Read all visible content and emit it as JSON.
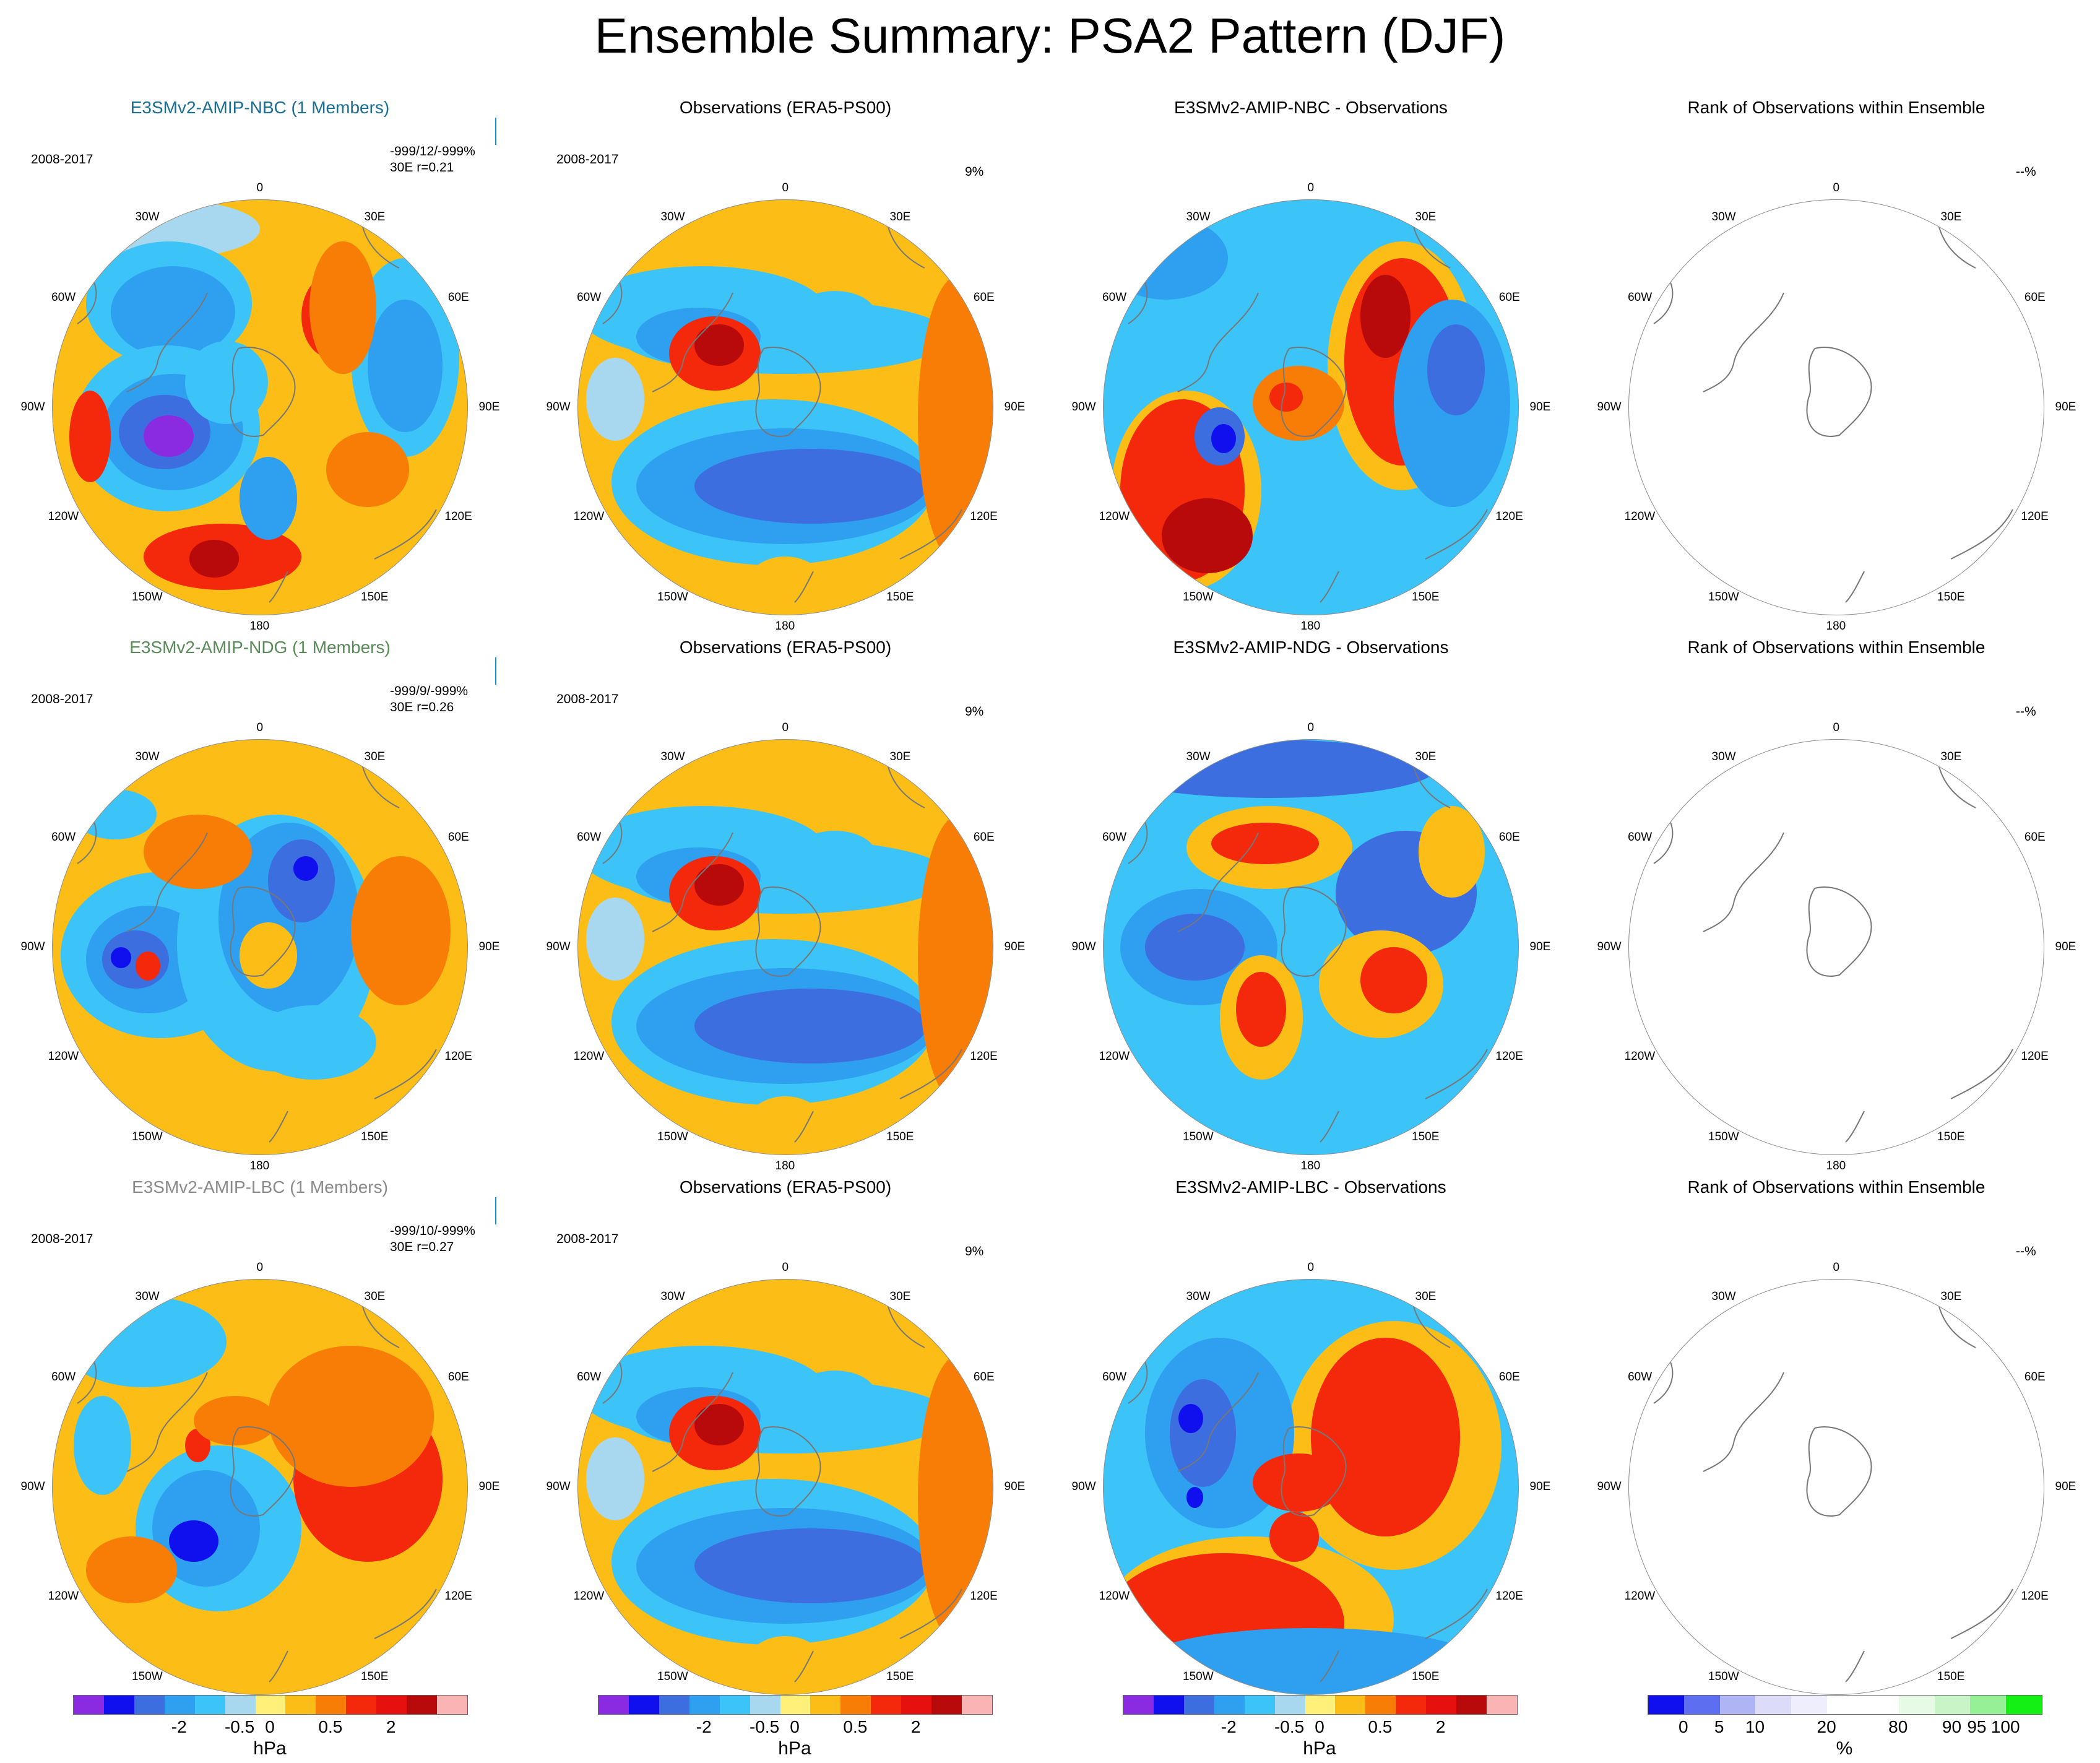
{
  "title": "Ensemble Summary: PSA2 Pattern (DJF)",
  "period": "2008-2017",
  "lon_labels": [
    "0",
    "30E",
    "60E",
    "90E",
    "120E",
    "150E",
    "180",
    "150W",
    "120W",
    "90W",
    "60W",
    "30W"
  ],
  "rows": [
    {
      "model_title": "E3SMv2-AMIP-NBC (1 Members)",
      "model_color": "#1b6e93",
      "stats": "-999/12/-999%",
      "corr": "30E  r=0.21",
      "obs_title": "Observations (ERA5-PS00)",
      "obs_pct": "9%",
      "diff_title": "E3SMv2-AMIP-NBC - Observations",
      "rank_title": "Rank of Observations within Ensemble",
      "rank_pct": "--%"
    },
    {
      "model_title": "E3SMv2-AMIP-NDG (1 Members)",
      "model_color": "#5a8a5a",
      "stats": "-999/9/-999%",
      "corr": "30E  r=0.26",
      "obs_title": "Observations (ERA5-PS00)",
      "obs_pct": "9%",
      "diff_title": "E3SMv2-AMIP-NDG - Observations",
      "rank_title": "Rank of Observations within Ensemble",
      "rank_pct": "--%"
    },
    {
      "model_title": "E3SMv2-AMIP-LBC (1 Members)",
      "model_color": "#8a8a8a",
      "stats": "-999/10/-999%",
      "corr": "30E  r=0.27",
      "obs_title": "Observations (ERA5-PS00)",
      "obs_pct": "9%",
      "obs_period": "2008-2017",
      "diff_title": "E3SMv2-AMIP-LBC - Observations",
      "rank_title": "Rank of Observations within Ensemble",
      "rank_pct": "--%"
    }
  ],
  "colorbar_hpa": {
    "colors": [
      "#8a2be2",
      "#1010ee",
      "#3c6ee0",
      "#2f9ff0",
      "#3cc4f8",
      "#a8d8f0",
      "#fff07a",
      "#fbbd16",
      "#f77d06",
      "#f4280a",
      "#e6110e",
      "#b80a0a",
      "#fbb4b4"
    ],
    "ticks": [
      "-2",
      "-0.5",
      "0",
      "0.5",
      "2"
    ],
    "unit": "hPa"
  },
  "colorbar_rank": {
    "colors": [
      "#1010ee",
      "#5e6ef0",
      "#aeb4f4",
      "#dcdcf8",
      "#eeeefc",
      "#ffffff",
      "#ffffff",
      "#e6fae6",
      "#c8f4c8",
      "#96f096",
      "#14f014"
    ],
    "ticks": [
      "0",
      "5",
      "10",
      "20",
      "80",
      "90",
      "95",
      "100"
    ],
    "unit": "%"
  }
}
